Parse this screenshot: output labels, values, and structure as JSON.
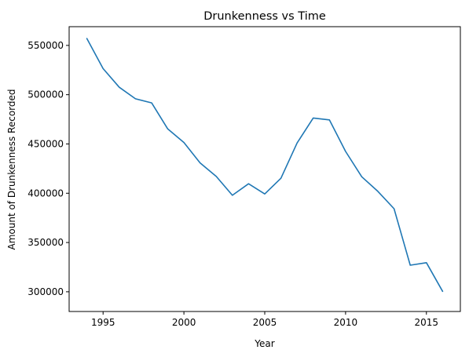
{
  "chart_data": {
    "type": "line",
    "title": "Drunkenness vs Time",
    "xlabel": "Year",
    "ylabel": "Amount of Drunkenness Recorded",
    "xlim": [
      1992.9,
      2017.1
    ],
    "ylim": [
      280000,
      569000
    ],
    "xticks": [
      1995,
      2000,
      2005,
      2010,
      2015
    ],
    "yticks": [
      300000,
      350000,
      400000,
      450000,
      500000,
      550000
    ],
    "grid": false,
    "series": [
      {
        "color": "#1f77b4",
        "x": [
          1994,
          1995,
          1996,
          1997,
          1998,
          1999,
          2000,
          2001,
          2002,
          2003,
          2004,
          2005,
          2006,
          2007,
          2008,
          2009,
          2010,
          2011,
          2012,
          2013,
          2014,
          2015,
          2016
        ],
        "values": [
          557000,
          526500,
          507500,
          495800,
          491700,
          465300,
          451500,
          430800,
          417000,
          397900,
          409600,
          399300,
          415200,
          451000,
          476300,
          474400,
          442400,
          416700,
          401900,
          384300,
          327000,
          329500,
          300500
        ]
      }
    ]
  }
}
